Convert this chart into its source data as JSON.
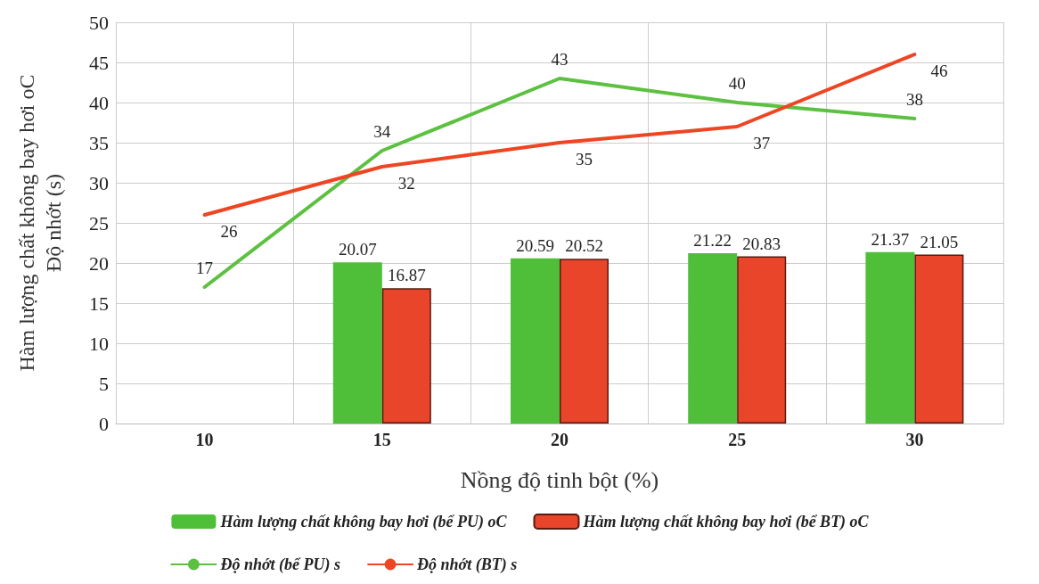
{
  "chart_data": {
    "type": "bar",
    "xlabel": "Nồng độ tinh bột (%)",
    "ylabel": "Hàm lượng chất không bay hơi oC\nĐộ nhớt (s)",
    "categories": [
      "10",
      "15",
      "20",
      "25",
      "30"
    ],
    "series": [
      {
        "name": "Hàm lượng chất không bay hơi (bể PU) oC",
        "color": "#4fbf3a",
        "values": [
          null,
          20.07,
          20.59,
          21.22,
          21.37
        ]
      },
      {
        "name": "Hàm lượng chất không bay hơi (bể BT) oC",
        "color": "#e8452a",
        "values": [
          null,
          16.87,
          20.52,
          20.83,
          21.05
        ]
      },
      {
        "name": "Độ nhớt (bể PU) s",
        "type": "line",
        "color": "#5cc040",
        "values": [
          17,
          34,
          43,
          40,
          38
        ]
      },
      {
        "name": "Độ nhớt (BT) s",
        "type": "line",
        "color": "#ee4522",
        "values": [
          26,
          32,
          35,
          37,
          46
        ]
      }
    ],
    "ylim": [
      0,
      50
    ],
    "yticks": [
      0,
      5,
      10,
      15,
      20,
      25,
      30,
      35,
      40,
      45,
      50
    ],
    "grid": true,
    "data_labels": true,
    "legend": "bottom",
    "marker": "none"
  }
}
